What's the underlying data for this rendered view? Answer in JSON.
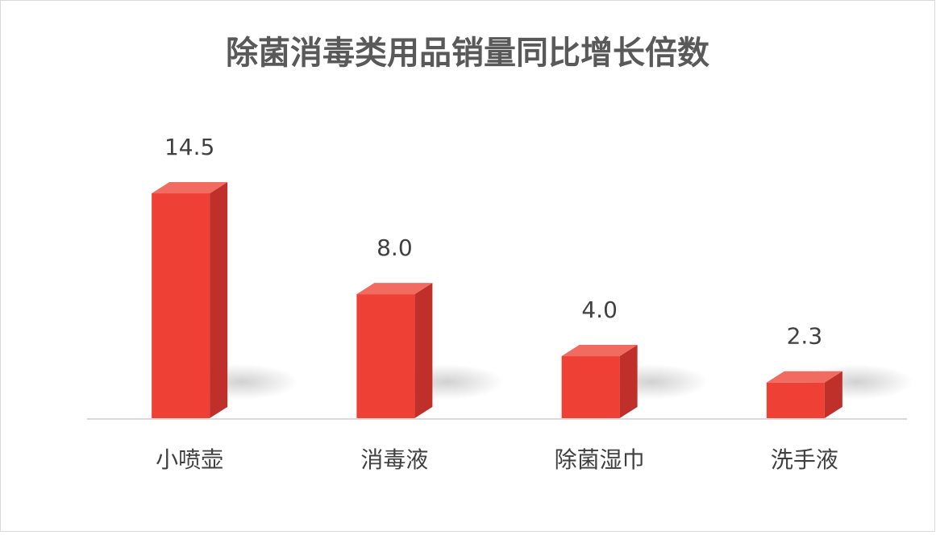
{
  "chart_data": {
    "type": "bar3d",
    "title": "除菌消毒类用品销量同比增长倍数",
    "categories": [
      "小喷壶",
      "消毒液",
      "除菌湿巾",
      "洗手液"
    ],
    "values": [
      14.5,
      8.0,
      4.0,
      2.3
    ],
    "value_labels": [
      "14.5",
      "8.0",
      "4.0",
      "2.3"
    ],
    "color": "#ee4035"
  }
}
